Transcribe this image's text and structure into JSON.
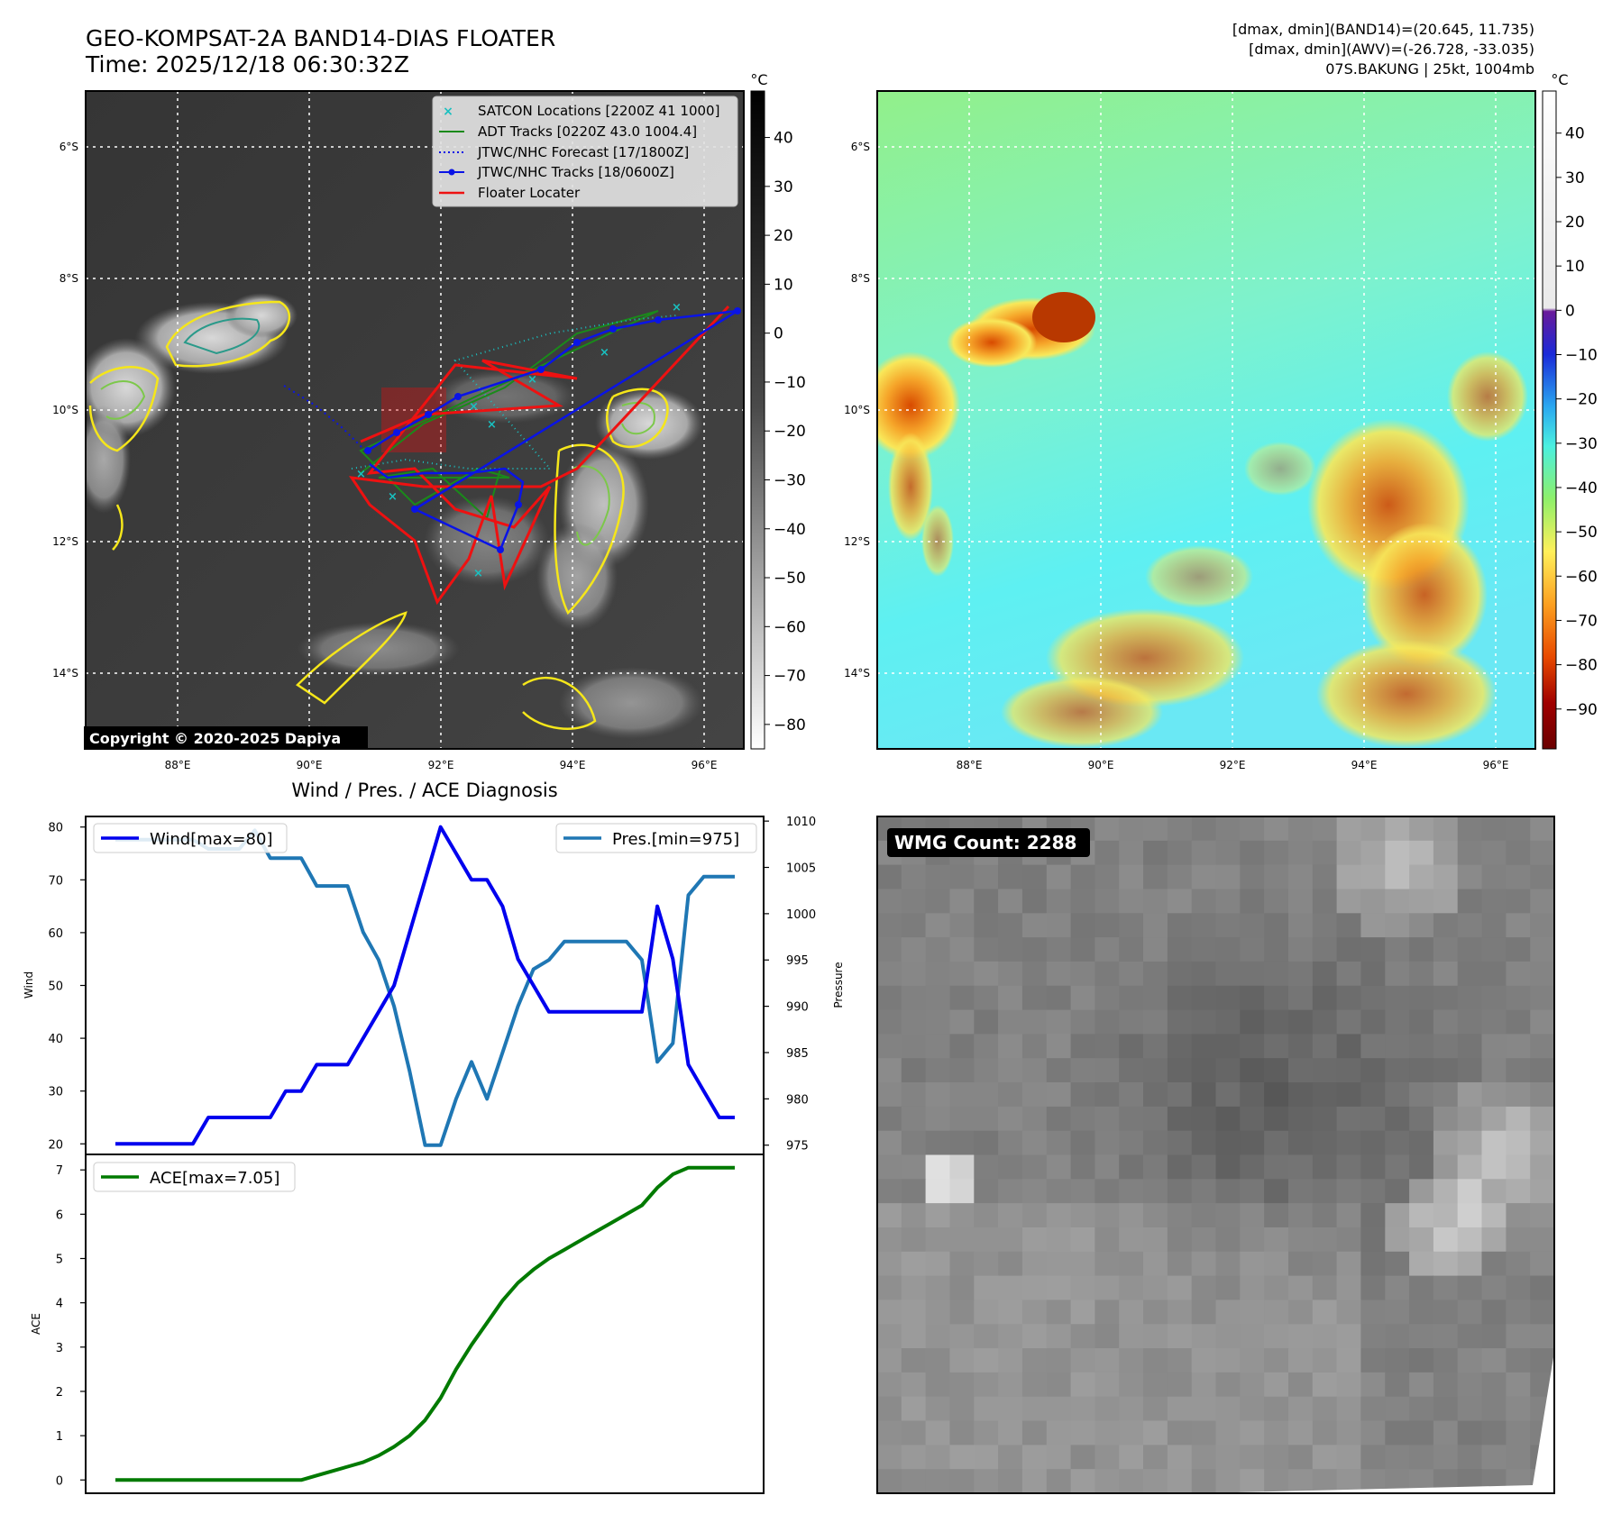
{
  "header": {
    "title_line1": "GEO-KOMPSAT-2A BAND14-DIAS FLOATER",
    "title_line2": "Time: 2025/12/18 06:30:32Z",
    "info_line1": "[dmax, dmin](BAND14)=(20.645, 11.735)",
    "info_line2": "[dmax, dmin](AWV)=(-26.728, -33.035)",
    "info_line3": "07S.BAKUNG | 25kt, 1004mb"
  },
  "map": {
    "lon_ticks": [
      "88°E",
      "90°E",
      "92°E",
      "94°E",
      "96°E"
    ],
    "lat_ticks": [
      "6°S",
      "8°S",
      "10°S",
      "12°S",
      "14°S"
    ],
    "copyright": "Copyright © 2020-2025 Dapiya",
    "legend": {
      "satcon": "SATCON Locations [2200Z 41 1000]",
      "adt": "ADT Tracks [0220Z 43.0 1004.4]",
      "forecast": "JTWC/NHC Forecast [17/1800Z]",
      "tracks": "JTWC/NHC Tracks [18/0600Z]",
      "floater": "Floater Locater"
    },
    "colors": {
      "satcon": "#19c0c0",
      "adt": "#1a8a1a",
      "jtwc": "#0a14e6",
      "floater": "#ee1111",
      "contour_yellow": "#f5e61a",
      "contour_green": "#7cc84a",
      "contour_teal": "#2a9a8a"
    }
  },
  "colorbar_gray": {
    "unit": "°C",
    "ticks": [
      "40",
      "30",
      "20",
      "10",
      "0",
      "−10",
      "−20",
      "−30",
      "−40",
      "−50",
      "−60",
      "−70",
      "−80"
    ]
  },
  "colorbar_color": {
    "unit": "°C",
    "ticks": [
      "40",
      "30",
      "20",
      "10",
      "0",
      "−10",
      "−20",
      "−30",
      "−40",
      "−50",
      "−60",
      "−70",
      "−80",
      "−90"
    ]
  },
  "wmg": {
    "label": "WMG Count: 2288"
  },
  "chart_data": [
    {
      "type": "line",
      "title": "Wind / Pres. / ACE Diagnosis",
      "ylabel": "Wind",
      "ylim": [
        18,
        82
      ],
      "yticks": [
        "20",
        "30",
        "40",
        "50",
        "60",
        "70",
        "80"
      ],
      "series": [
        {
          "name": "Wind[max=80]",
          "color": "#0000ee",
          "values": [
            20,
            20,
            20,
            20,
            20,
            20,
            25,
            25,
            25,
            25,
            25,
            30,
            30,
            35,
            35,
            35,
            40,
            45,
            50,
            60,
            70,
            80,
            75,
            70,
            70,
            65,
            55,
            50,
            45,
            45,
            45,
            45,
            45,
            45,
            45,
            65,
            55,
            35,
            30,
            25,
            25
          ]
        }
      ]
    },
    {
      "type": "line",
      "ylabel": "Pressure",
      "ylim": [
        974,
        1010.5
      ],
      "yticks": [
        "975",
        "980",
        "985",
        "990",
        "995",
        "1000",
        "1005",
        "1010"
      ],
      "series": [
        {
          "name": "Pres.[min=975]",
          "color": "#1f77b4",
          "values": [
            1008,
            1008,
            1008,
            1008,
            1008,
            1008,
            1007,
            1007,
            1007,
            1009,
            1006,
            1006,
            1006,
            1003,
            1003,
            1003,
            998,
            995,
            990,
            983,
            975,
            975,
            980,
            984,
            980,
            985,
            990,
            994,
            995,
            997,
            997,
            997,
            997,
            997,
            995,
            984,
            986,
            1002,
            1004,
            1004,
            1004
          ]
        }
      ]
    },
    {
      "type": "line",
      "ylabel": "ACE",
      "ylim": [
        -0.3,
        7.35
      ],
      "yticks": [
        "0",
        "1",
        "2",
        "3",
        "4",
        "5",
        "6",
        "7"
      ],
      "series": [
        {
          "name": "ACE[max=7.05]",
          "color": "#007a00",
          "values": [
            0,
            0,
            0,
            0,
            0,
            0,
            0,
            0,
            0,
            0,
            0,
            0,
            0,
            0.1,
            0.2,
            0.3,
            0.4,
            0.55,
            0.75,
            1.0,
            1.35,
            1.85,
            2.5,
            3.05,
            3.55,
            4.05,
            4.45,
            4.75,
            5.0,
            5.2,
            5.4,
            5.6,
            5.8,
            6.0,
            6.2,
            6.6,
            6.9,
            7.05,
            7.05,
            7.05,
            7.05
          ]
        }
      ]
    }
  ]
}
